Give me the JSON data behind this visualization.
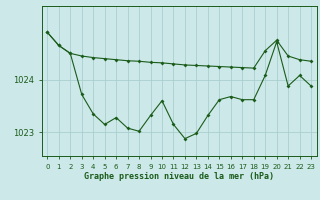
{
  "title": "Graphe pression niveau de la mer (hPa)",
  "background_color": "#cce8e8",
  "plot_bg_color": "#cce8e8",
  "line_color": "#1a5c1a",
  "marker_color": "#1a5c1a",
  "grid_color": "#aacece",
  "axis_color": "#1a5c1a",
  "tick_label_color": "#1a5c1a",
  "xlabel_color": "#1a5c1a",
  "ylim": [
    1022.55,
    1025.4
  ],
  "xlim": [
    -0.5,
    23.5
  ],
  "yticks": [
    1023,
    1024
  ],
  "xticks": [
    0,
    1,
    2,
    3,
    4,
    5,
    6,
    7,
    8,
    9,
    10,
    11,
    12,
    13,
    14,
    15,
    16,
    17,
    18,
    19,
    20,
    21,
    22,
    23
  ],
  "hours": [
    0,
    1,
    2,
    3,
    4,
    5,
    6,
    7,
    8,
    9,
    10,
    11,
    12,
    13,
    14,
    15,
    16,
    17,
    18,
    19,
    20,
    21,
    22,
    23
  ],
  "series1": [
    1024.9,
    1024.65,
    1024.5,
    1024.45,
    1024.42,
    1024.4,
    1024.38,
    1024.36,
    1024.35,
    1024.33,
    1024.32,
    1024.3,
    1024.28,
    1024.27,
    1024.26,
    1024.25,
    1024.24,
    1024.23,
    1024.22,
    1024.55,
    1024.75,
    1024.45,
    1024.38,
    1024.35
  ],
  "series2": [
    1024.9,
    1024.65,
    1024.5,
    1023.72,
    1023.35,
    1023.15,
    1023.28,
    1023.08,
    1023.02,
    1023.32,
    1023.6,
    1023.15,
    1022.88,
    1022.98,
    1023.32,
    1023.62,
    1023.68,
    1023.62,
    1023.62,
    1024.08,
    1024.72,
    1023.88,
    1024.08,
    1023.88
  ]
}
